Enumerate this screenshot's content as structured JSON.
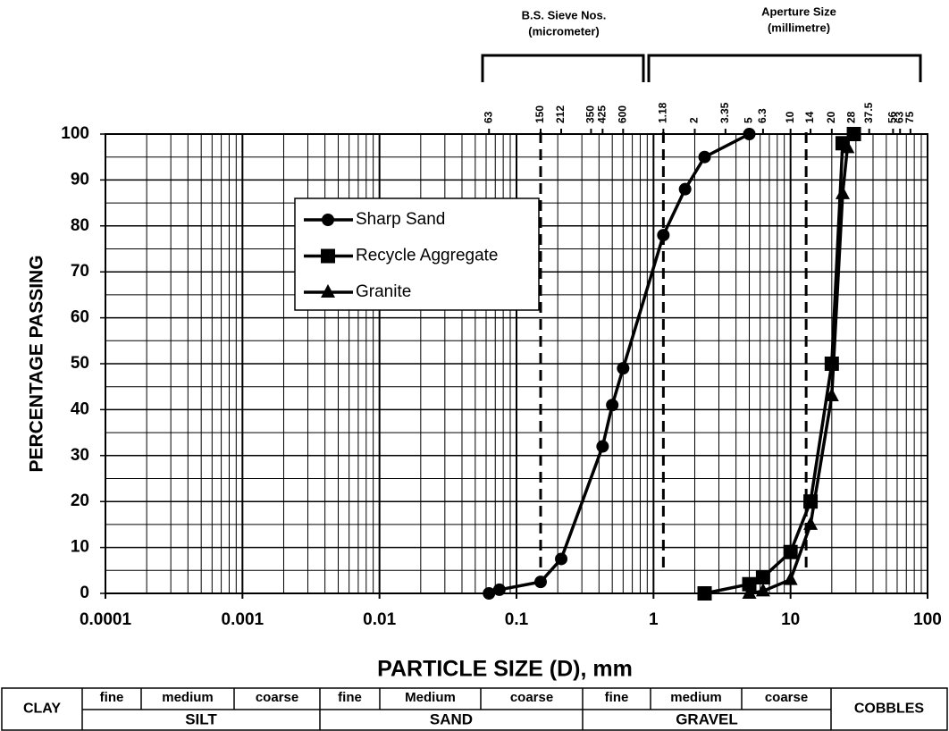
{
  "chart_data": {
    "type": "line",
    "xscale": "log",
    "xlabel": "PARTICLE SIZE (D), mm",
    "ylabel": "PERCENTAGE PASSING",
    "xlim": [
      0.0001,
      100
    ],
    "xticks": [
      0.0001,
      0.001,
      0.01,
      0.1,
      1,
      10,
      100
    ],
    "ylim": [
      0,
      100
    ],
    "yticks": [
      0,
      10,
      20,
      30,
      40,
      50,
      60,
      70,
      80,
      90,
      100
    ],
    "grid": true,
    "top_ticks": [
      {
        "value": 0.063,
        "label": "63"
      },
      {
        "value": 0.15,
        "label": "150"
      },
      {
        "value": 0.212,
        "label": "212"
      },
      {
        "value": 0.35,
        "label": "350"
      },
      {
        "value": 0.425,
        "label": "425"
      },
      {
        "value": 0.6,
        "label": "600"
      },
      1.18,
      2,
      3.35,
      5,
      6.3,
      10,
      14,
      20,
      28,
      37.5,
      56,
      63,
      75
    ],
    "top_groups": [
      {
        "title": "B.S. Sieve Nos.",
        "subtitle": "(micrometer)"
      },
      {
        "title": "Aperture Size",
        "subtitle": "(millimetre)"
      }
    ],
    "reference_lines": [
      0.15,
      1.18,
      13
    ],
    "series": [
      {
        "name": "Sharp Sand",
        "color": "#000000",
        "marker": "circle",
        "x": [
          0.063,
          0.075,
          0.15,
          0.212,
          0.425,
          0.5,
          0.6,
          1.18,
          1.7,
          2.36,
          5
        ],
        "values": [
          0,
          0.8,
          2.5,
          7.5,
          32,
          41,
          49,
          78,
          88,
          95,
          100
        ]
      },
      {
        "name": "Recycle Aggregate",
        "color": "#000000",
        "marker": "square",
        "x": [
          2.36,
          5,
          6.3,
          10,
          14,
          20,
          24,
          29
        ],
        "values": [
          0,
          2,
          3.5,
          9,
          20,
          50,
          98,
          100
        ]
      },
      {
        "name": "Granite",
        "color": "#000000",
        "marker": "triangle",
        "x": [
          5,
          6.3,
          10,
          14,
          20,
          24,
          26
        ],
        "values": [
          0,
          0.5,
          3,
          15,
          43,
          87,
          97
        ]
      }
    ]
  },
  "classification": {
    "clay": "CLAY",
    "cobbles": "COBBLES",
    "subdivisions": [
      "fine",
      "medium",
      "coarse",
      "fine",
      "Medium",
      "coarse",
      "fine",
      "medium",
      "coarse"
    ],
    "groups": [
      "SILT",
      "SAND",
      "GRAVEL"
    ]
  }
}
